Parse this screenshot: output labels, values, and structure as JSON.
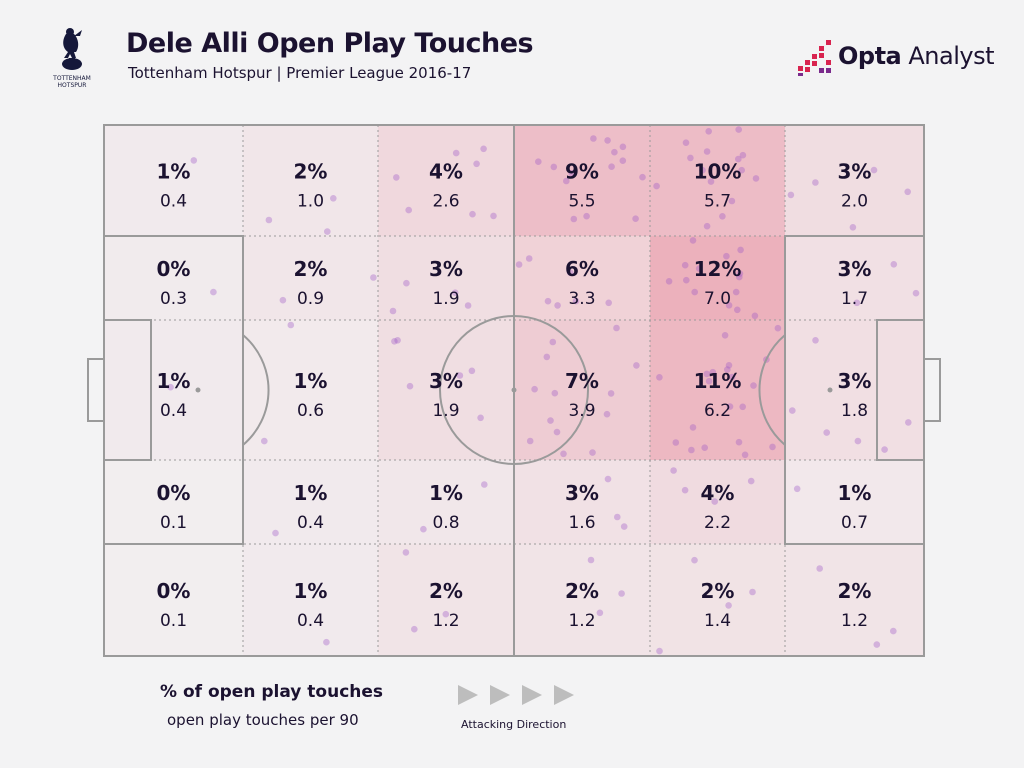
{
  "header": {
    "title": "Dele Alli Open Play Touches",
    "subtitle": "Tottenham Hotspur | Premier League 2016-17",
    "crest_text_1": "TOTTENHAM",
    "crest_text_2": "HOTSPUR",
    "brand_bold": "Opta",
    "brand_light": " Analyst"
  },
  "legend": {
    "main": "% of open play touches",
    "sub": "open play touches per 90",
    "direction": "Attacking Direction"
  },
  "colors": {
    "background": "#f3f3f4",
    "heat": "#e88c9d",
    "dots": "#9a52c6",
    "lines": "#9a9a9a",
    "text": "#1b1230",
    "brand_accent": "#d8234f"
  },
  "chart_data": {
    "type": "heatmap",
    "title": "Dele Alli Open Play Touches",
    "columns": 6,
    "rows": 5,
    "orientation": "attacking left to right",
    "percent": [
      [
        "1%",
        "2%",
        "4%",
        "9%",
        "10%",
        "3%"
      ],
      [
        "0%",
        "2%",
        "3%",
        "6%",
        "12%",
        "3%"
      ],
      [
        "1%",
        "1%",
        "3%",
        "7%",
        "11%",
        "3%"
      ],
      [
        "0%",
        "1%",
        "1%",
        "3%",
        "4%",
        "1%"
      ],
      [
        "0%",
        "1%",
        "2%",
        "2%",
        "2%",
        "2%"
      ]
    ],
    "per90": [
      [
        "0.4",
        "1.0",
        "2.6",
        "5.5",
        "5.7",
        "2.0"
      ],
      [
        "0.3",
        "0.9",
        "1.9",
        "3.3",
        "7.0",
        "1.7"
      ],
      [
        "0.4",
        "0.6",
        "1.9",
        "3.9",
        "6.2",
        "1.8"
      ],
      [
        "0.1",
        "0.4",
        "0.8",
        "1.6",
        "2.2",
        "0.7"
      ],
      [
        "0.1",
        "0.4",
        "1.2",
        "1.2",
        "1.4",
        "1.2"
      ]
    ]
  }
}
